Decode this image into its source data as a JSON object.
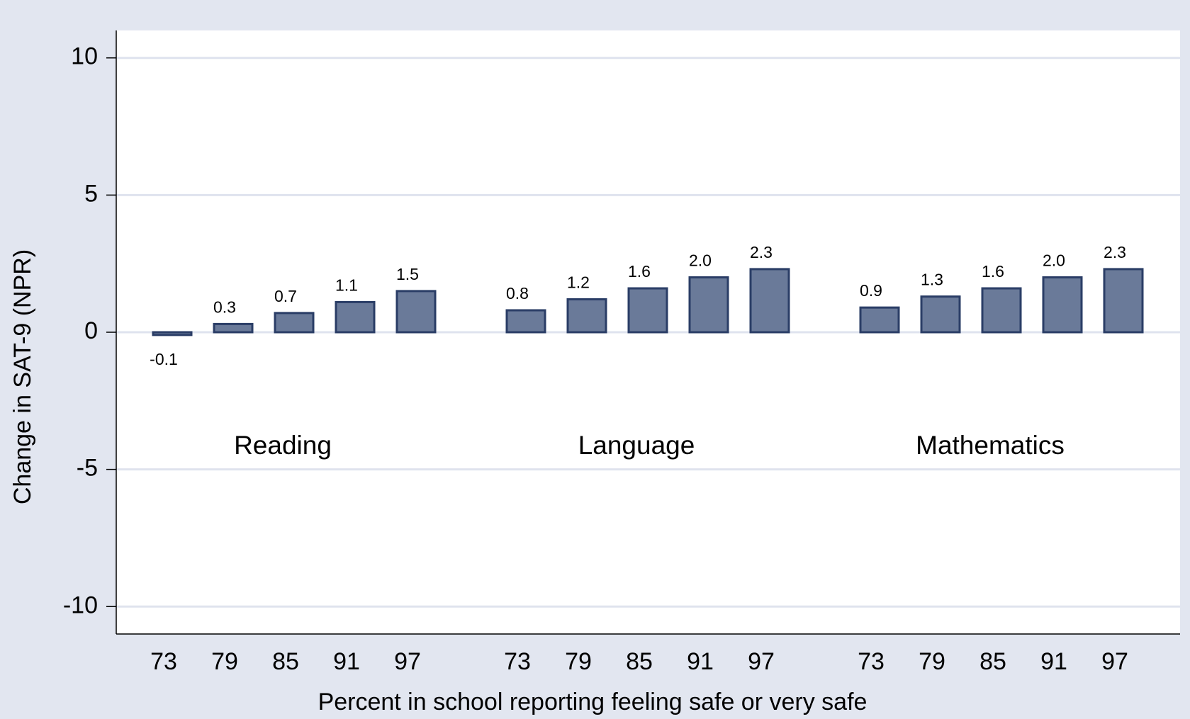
{
  "chart_data": {
    "type": "bar",
    "ylabel": "Change in SAT-9 (NPR)",
    "xlabel": "Percent in school reporting feeling safe or very safe",
    "categories": [
      "73",
      "79",
      "85",
      "91",
      "97"
    ],
    "series": [
      {
        "name": "Reading",
        "color": "#6a7a99",
        "values": [
          -0.1,
          0.3,
          0.7,
          1.1,
          1.5
        ],
        "value_labels": [
          "-0.1",
          "0.3",
          "0.7",
          "1.1",
          "1.5"
        ]
      },
      {
        "name": "Language",
        "color": "#6a7a99",
        "values": [
          0.8,
          1.2,
          1.6,
          2.0,
          2.3
        ],
        "value_labels": [
          "0.8",
          "1.2",
          "1.6",
          "2.0",
          "2.3"
        ]
      },
      {
        "name": "Mathematics",
        "color": "#6a7a99",
        "values": [
          0.9,
          1.3,
          1.6,
          2.0,
          2.3
        ],
        "value_labels": [
          "0.9",
          "1.3",
          "1.6",
          "2.0",
          "2.3"
        ]
      }
    ],
    "ylim": [
      -11,
      11
    ],
    "yticks": [
      -10,
      -5,
      0,
      5,
      10
    ],
    "grid": true
  }
}
